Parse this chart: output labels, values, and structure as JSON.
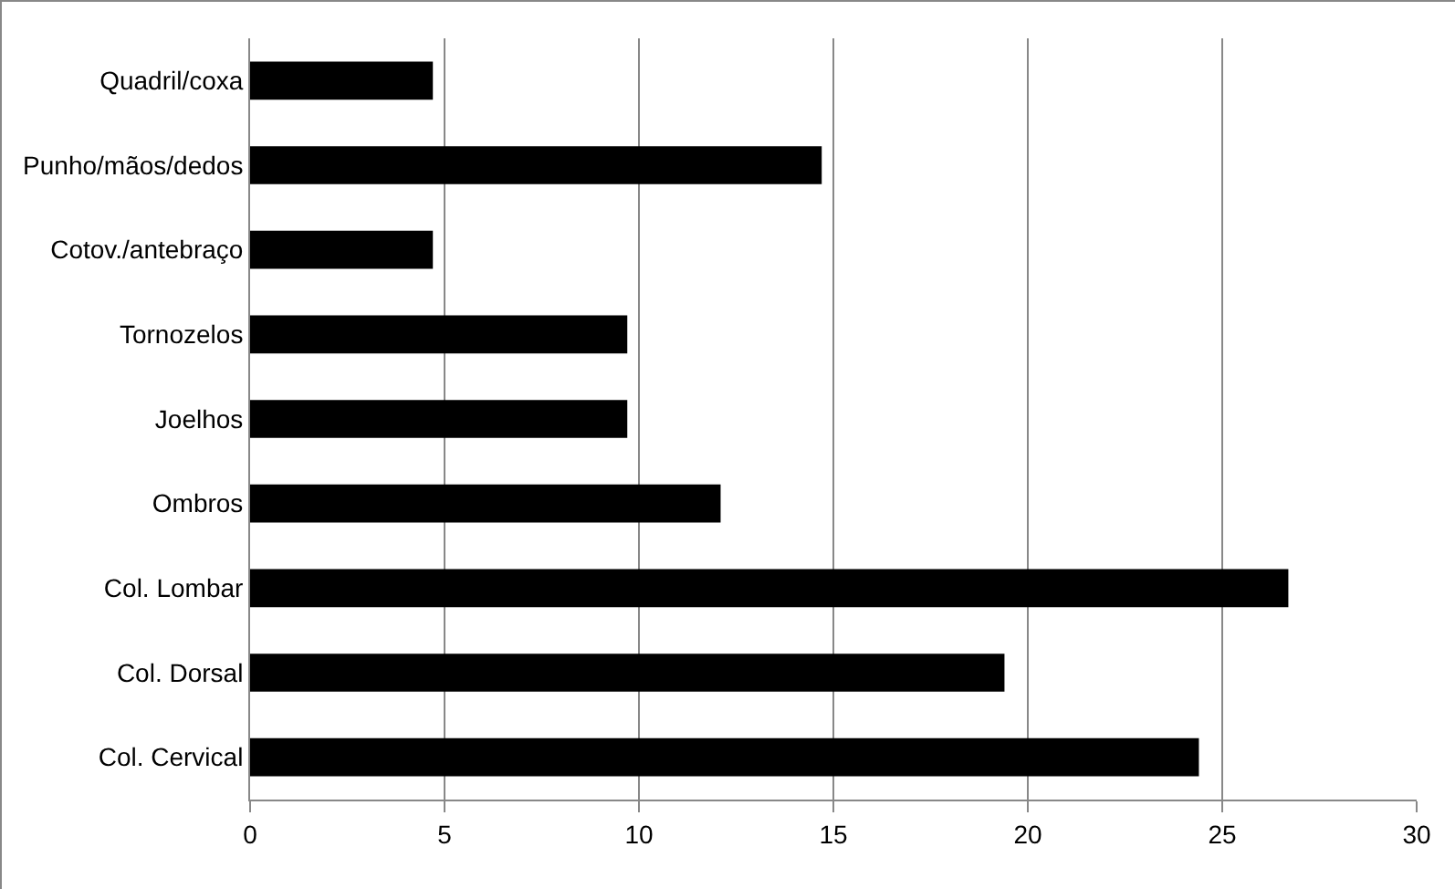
{
  "chart_data": {
    "type": "bar",
    "orientation": "horizontal",
    "categories": [
      "Quadril/coxa",
      "Punho/mãos/dedos",
      "Cotov./antebraço",
      "Tornozelos",
      "Joelhos",
      "Ombros",
      "Col. Lombar",
      "Col. Dorsal",
      "Col. Cervical"
    ],
    "values": [
      4.7,
      14.7,
      4.7,
      9.7,
      9.7,
      12.1,
      26.7,
      19.4,
      24.4
    ],
    "color": "#000000",
    "xlim": [
      0,
      30
    ],
    "xticks": [
      0,
      5,
      10,
      15,
      20,
      25,
      30
    ],
    "grid": "x"
  }
}
